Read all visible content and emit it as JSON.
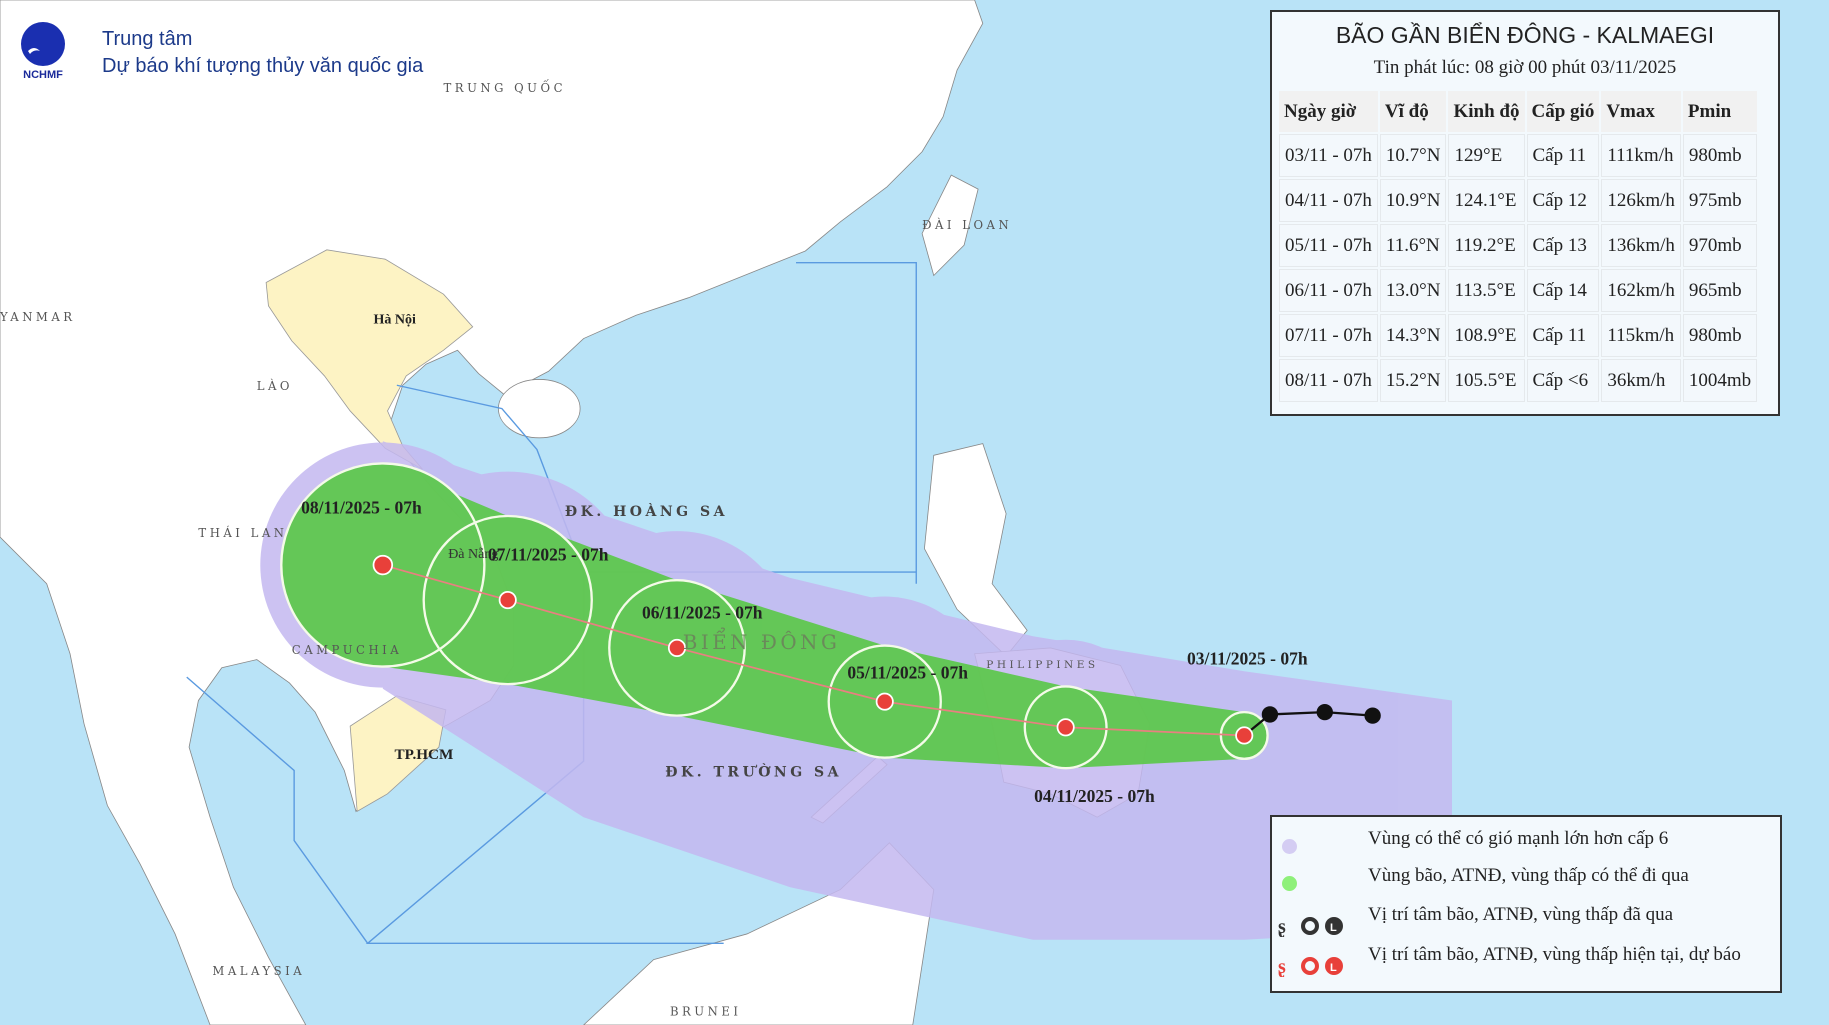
{
  "header": {
    "logo_text": "NCHMF",
    "org_line1": "Trung tâm",
    "org_line2": "Dự báo khí tượng thủy văn quốc gia"
  },
  "info": {
    "title": "BÃO GẦN BIỂN ĐÔNG - KALMAEGI",
    "issued": "Tin phát lúc: 08 giờ 00 phút 03/11/2025",
    "columns": [
      "Ngày giờ",
      "Vĩ độ",
      "Kinh độ",
      "Cấp gió",
      "Vmax",
      "Pmin"
    ],
    "rows": [
      [
        "03/11 - 07h",
        "10.7°N",
        "129°E",
        "Cấp 11",
        "111km/h",
        "980mb"
      ],
      [
        "04/11 - 07h",
        "10.9°N",
        "124.1°E",
        "Cấp 12",
        "126km/h",
        "975mb"
      ],
      [
        "05/11 - 07h",
        "11.6°N",
        "119.2°E",
        "Cấp 13",
        "136km/h",
        "970mb"
      ],
      [
        "06/11 - 07h",
        "13.0°N",
        "113.5°E",
        "Cấp 14",
        "162km/h",
        "965mb"
      ],
      [
        "07/11 - 07h",
        "14.3°N",
        "108.9°E",
        "Cấp 11",
        "115km/h",
        "980mb"
      ],
      [
        "08/11 - 07h",
        "15.2°N",
        "105.5°E",
        "Cấp <6",
        "36km/h",
        "1004mb"
      ]
    ]
  },
  "track_labels": [
    "03/11/2025 - 07h",
    "04/11/2025 - 07h",
    "05/11/2025 - 07h",
    "06/11/2025 - 07h",
    "07/11/2025 - 07h",
    "08/11/2025 - 07h"
  ],
  "map_labels": {
    "china": "TRUNG QUỐC",
    "taiwan": "ĐÀI LOAN",
    "myanmar": "YANMAR",
    "laos": "LÀO",
    "hanoi": "Hà Nội",
    "thailand": "THÁI LAN",
    "cambodia": "CAMPUCHIA",
    "danang": "Đà Nẵng",
    "hcm": "TP.HCM",
    "east_sea": "BIỂN ĐÔNG",
    "paracel": "ĐK. HOÀNG SA",
    "spratly": "ĐK. TRƯỜNG SA",
    "malaysia": "MALAYSIA",
    "brunei": "BRUNEI",
    "philippines": "PHILIPPINES"
  },
  "legend": {
    "items": [
      {
        "label": "Vùng có thể có gió mạnh lớn hơn cấp 6",
        "color": "#d4cdf3"
      },
      {
        "label": "Vùng bão, ATNĐ, vùng thấp có thể đi qua",
        "color": "#8ef07a"
      },
      {
        "label": "Vị trí tâm bão, ATNĐ, vùng thấp đã qua",
        "color": "#333333"
      },
      {
        "label": "Vị trí tâm bão, ATNĐ, vùng thấp hiện tại, dự báo",
        "color": "#e8403a"
      }
    ]
  },
  "colors": {
    "sea": "#b9e3f7",
    "land": "#ffffff",
    "vietnam": "#fdf3c4",
    "wind_zone": "#c4b8f0",
    "storm_zone": "#5cc84a",
    "forecast_marker": "#e8403a",
    "past_marker": "#111111"
  }
}
